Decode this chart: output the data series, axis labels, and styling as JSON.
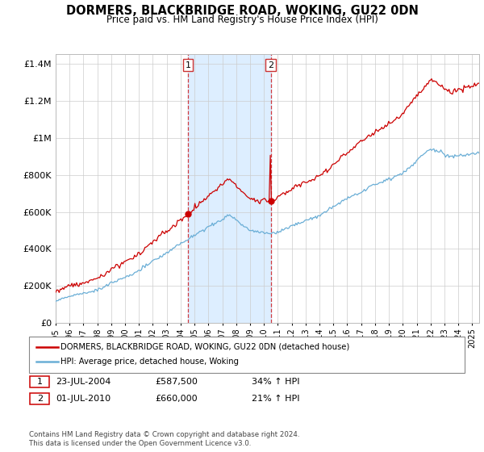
{
  "title": "DORMERS, BLACKBRIDGE ROAD, WOKING, GU22 0DN",
  "subtitle": "Price paid vs. HM Land Registry's House Price Index (HPI)",
  "ylim": [
    0,
    1450000
  ],
  "yticks": [
    0,
    200000,
    400000,
    600000,
    800000,
    1000000,
    1200000,
    1400000
  ],
  "ytick_labels": [
    "£0",
    "£200K",
    "£400K",
    "£600K",
    "£800K",
    "£1M",
    "£1.2M",
    "£1.4M"
  ],
  "xticks": [
    1995,
    1996,
    1997,
    1998,
    1999,
    2000,
    2001,
    2002,
    2003,
    2004,
    2005,
    2006,
    2007,
    2008,
    2009,
    2010,
    2011,
    2012,
    2013,
    2014,
    2015,
    2016,
    2017,
    2018,
    2019,
    2020,
    2021,
    2022,
    2023,
    2024,
    2025
  ],
  "hpi_color": "#6aaed6",
  "price_color": "#cc0000",
  "shade_color": "#ddeeff",
  "marker1_x": 2004.54,
  "marker1_y": 587500,
  "marker2_x": 2010.5,
  "marker2_y": 660000,
  "marker1_label": "23-JUL-2004",
  "marker1_price": "£587,500",
  "marker1_pct": "34% ↑ HPI",
  "marker2_label": "01-JUL-2010",
  "marker2_price": "£660,000",
  "marker2_pct": "21% ↑ HPI",
  "legend_line1": "DORMERS, BLACKBRIDGE ROAD, WOKING, GU22 0DN (detached house)",
  "legend_line2": "HPI: Average price, detached house, Woking",
  "footer": "Contains HM Land Registry data © Crown copyright and database right 2024.\nThis data is licensed under the Open Government Licence v3.0.",
  "bg_color": "#f0f4ff",
  "plot_bg": "#ffffff"
}
